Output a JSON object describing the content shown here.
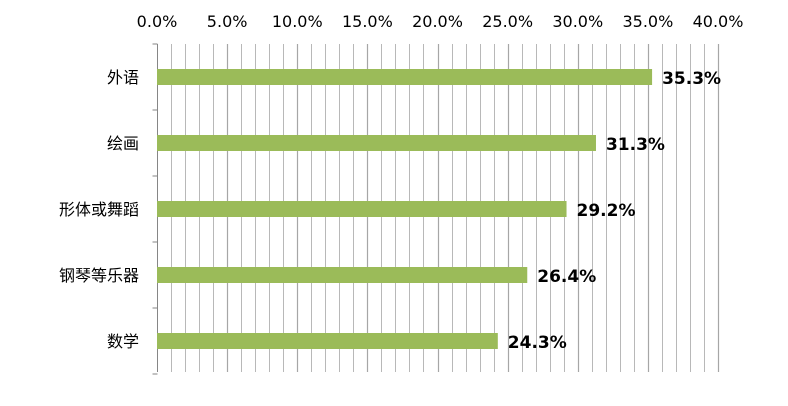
{
  "chart_data": {
    "type": "bar",
    "orientation": "horizontal",
    "axis_position": "top",
    "categories": [
      "外语",
      "绘画",
      "形体或舞蹈",
      "钢琴等乐器",
      "数学"
    ],
    "values": [
      35.3,
      31.3,
      29.2,
      26.4,
      24.3
    ],
    "data_labels": [
      "35.3%",
      "31.3%",
      "29.2%",
      "26.4%",
      "24.3%"
    ],
    "xlim": [
      0,
      40
    ],
    "major_ticks": [
      0,
      5,
      10,
      15,
      20,
      25,
      30,
      35,
      40
    ],
    "tick_labels": [
      "0.0%",
      "5.0%",
      "10.0%",
      "15.0%",
      "20.0%",
      "25.0%",
      "30.0%",
      "35.0%",
      "40.0%"
    ],
    "minor_step": 1,
    "grid": true,
    "title": "",
    "xlabel": "",
    "ylabel": "",
    "colors": {
      "bar": "#9BBB59",
      "grid": "#A6A6A6",
      "axis": "#868686"
    }
  }
}
